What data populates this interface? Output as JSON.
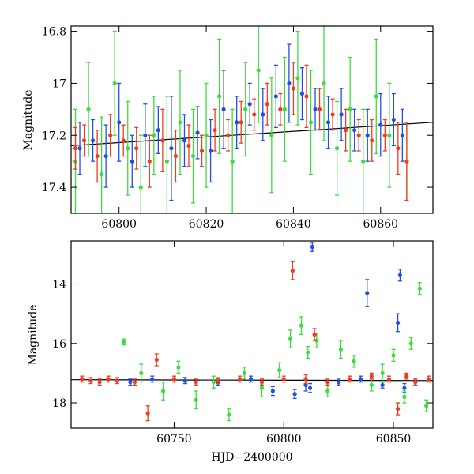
{
  "chart_data": [
    {
      "type": "scatter",
      "panel": "top",
      "xlabel": "",
      "ylabel": "Magnitude",
      "xlim": [
        60789,
        60872
      ],
      "ylim": [
        17.5,
        16.78
      ],
      "y_inverted": true,
      "x_ticks": [
        60800,
        60820,
        60840,
        60860
      ],
      "x_tick_labels": [
        "60800",
        "60820",
        "60840",
        "60860"
      ],
      "y_ticks": [
        16.8,
        17.0,
        17.2,
        17.4
      ],
      "y_tick_labels": [
        "16.8",
        "17",
        "17.2",
        "17.4"
      ],
      "grid": false,
      "legend": "none",
      "trend_line": {
        "x": [
          60789,
          60872
        ],
        "y": [
          17.24,
          17.15
        ]
      },
      "colors": {
        "blue": "#1f4fe6",
        "green": "#3ddc3d",
        "red": "#f03a22",
        "line": "#000000"
      },
      "series": [
        {
          "color": "blue",
          "x": [
            60791,
            60794,
            60797,
            60800,
            60803,
            60806,
            60809,
            60812,
            60815,
            60818,
            60821,
            60824,
            60827,
            60830,
            60833,
            60836,
            60839,
            60842,
            60845,
            60848,
            60851,
            60854,
            60857,
            60860,
            60863,
            60865
          ],
          "y": [
            17.25,
            17.22,
            17.28,
            17.15,
            17.3,
            17.2,
            17.18,
            17.25,
            17.22,
            17.19,
            17.26,
            17.1,
            17.15,
            17.08,
            17.12,
            17.05,
            17.0,
            17.04,
            17.1,
            17.15,
            17.12,
            17.18,
            17.2,
            17.16,
            17.14,
            17.2
          ],
          "err": [
            0.1,
            0.08,
            0.12,
            0.15,
            0.1,
            0.12,
            0.09,
            0.2,
            0.1,
            0.1,
            0.12,
            0.15,
            0.1,
            0.08,
            0.1,
            0.12,
            0.15,
            0.1,
            0.08,
            0.1,
            0.1,
            0.08,
            0.1,
            0.12,
            0.1,
            0.1
          ]
        },
        {
          "color": "green",
          "x": [
            60790,
            60793,
            60796,
            60799,
            60802,
            60805,
            60808,
            60811,
            60814,
            60817,
            60820,
            60823,
            60826,
            60829,
            60832,
            60835,
            60838,
            60841,
            60844,
            60847,
            60850,
            60853,
            60856,
            60859,
            60862,
            60866
          ],
          "y": [
            17.3,
            17.1,
            17.35,
            17.0,
            17.25,
            17.4,
            17.2,
            17.3,
            17.15,
            17.28,
            17.2,
            17.05,
            17.3,
            17.1,
            16.95,
            17.2,
            17.1,
            16.98,
            17.15,
            17.0,
            17.25,
            17.1,
            17.3,
            17.05,
            17.2,
            17.3
          ],
          "err": [
            0.2,
            0.18,
            0.22,
            0.2,
            0.18,
            0.2,
            0.15,
            0.25,
            0.2,
            0.18,
            0.2,
            0.22,
            0.2,
            0.18,
            0.2,
            0.22,
            0.2,
            0.18,
            0.2,
            0.22,
            0.18,
            0.2,
            0.2,
            0.22,
            0.2,
            0.15
          ]
        },
        {
          "color": "red",
          "x": [
            60790,
            60792,
            60795,
            60798,
            60801,
            60804,
            60807,
            60810,
            60813,
            60816,
            60819,
            60822,
            60825,
            60828,
            60831,
            60834,
            60837,
            60840,
            60843,
            60846,
            60849,
            60852,
            60855,
            60858,
            60861,
            60864,
            60866
          ],
          "y": [
            17.25,
            17.22,
            17.28,
            17.2,
            17.22,
            17.25,
            17.3,
            17.22,
            17.28,
            17.24,
            17.26,
            17.18,
            17.2,
            17.15,
            17.12,
            17.08,
            17.1,
            17.02,
            17.05,
            17.1,
            17.12,
            17.18,
            17.2,
            17.22,
            17.2,
            17.25,
            17.3
          ],
          "err": [
            0.08,
            0.06,
            0.1,
            0.08,
            0.06,
            0.08,
            0.1,
            0.12,
            0.1,
            0.08,
            0.06,
            0.08,
            0.06,
            0.08,
            0.06,
            0.08,
            0.06,
            0.1,
            0.12,
            0.08,
            0.06,
            0.08,
            0.06,
            0.08,
            0.06,
            0.1,
            0.15
          ]
        }
      ]
    },
    {
      "type": "scatter",
      "panel": "bottom",
      "xlabel": "HJD−2400000",
      "ylabel": "Magnitude",
      "xlim": [
        60703,
        60868
      ],
      "ylim": [
        18.85,
        12.55
      ],
      "y_inverted": true,
      "x_ticks": [
        60750,
        60800,
        60850
      ],
      "x_tick_labels": [
        "60750",
        "60800",
        "60850"
      ],
      "y_ticks": [
        14,
        16,
        18
      ],
      "y_tick_labels": [
        "14",
        "16",
        "18"
      ],
      "grid": false,
      "legend": "none",
      "trend_line": {
        "x": [
          60703,
          60868
        ],
        "y": [
          17.22,
          17.25
        ]
      },
      "colors": {
        "blue": "#1f4fe6",
        "green": "#3ddc3d",
        "red": "#f03a22",
        "line": "#000000"
      },
      "series": [
        {
          "color": "blue",
          "x": [
            60730,
            60740,
            60755,
            60770,
            60785,
            60795,
            60805,
            60810,
            60812,
            60813,
            60825,
            60835,
            60838,
            60845,
            60852,
            60853,
            60855,
            60860
          ],
          "y": [
            17.3,
            17.2,
            17.25,
            17.3,
            17.2,
            17.6,
            17.7,
            17.4,
            17.5,
            12.75,
            17.3,
            17.2,
            14.3,
            17.4,
            15.3,
            13.7,
            17.5,
            17.3
          ],
          "err": [
            0.1,
            0.1,
            0.1,
            0.1,
            0.1,
            0.15,
            0.15,
            0.2,
            0.15,
            0.15,
            0.1,
            0.1,
            0.45,
            0.1,
            0.3,
            0.2,
            0.15,
            0.1
          ]
        },
        {
          "color": "green",
          "x": [
            60727,
            60735,
            60745,
            60752,
            60760,
            60768,
            60775,
            60782,
            60790,
            60798,
            60803,
            60808,
            60811,
            60815,
            60820,
            60826,
            60832,
            60840,
            60845,
            60850,
            60855,
            60858,
            60862,
            60865
          ],
          "y": [
            15.95,
            17.0,
            17.6,
            16.8,
            17.9,
            17.3,
            18.4,
            17.0,
            17.5,
            16.9,
            15.85,
            15.4,
            16.3,
            15.9,
            17.6,
            16.2,
            16.6,
            17.4,
            17.0,
            16.4,
            17.8,
            16.0,
            14.15,
            18.1
          ],
          "err": [
            0.1,
            0.3,
            0.3,
            0.2,
            0.3,
            0.2,
            0.2,
            0.2,
            0.3,
            0.25,
            0.3,
            0.3,
            0.2,
            0.25,
            0.2,
            0.3,
            0.2,
            0.2,
            0.3,
            0.2,
            0.2,
            0.2,
            0.2,
            0.2
          ]
        },
        {
          "color": "red",
          "x": [
            60708,
            60712,
            60716,
            60720,
            60724,
            60732,
            60738,
            60742,
            60750,
            60760,
            60770,
            60780,
            60790,
            60800,
            60804,
            60810,
            60814,
            60820,
            60830,
            60840,
            60848,
            60852,
            60856,
            60860,
            60866
          ],
          "y": [
            17.2,
            17.25,
            17.3,
            17.2,
            17.25,
            17.3,
            18.35,
            16.55,
            17.2,
            17.3,
            17.25,
            17.2,
            17.3,
            17.2,
            13.55,
            17.2,
            15.7,
            17.3,
            17.2,
            17.1,
            17.2,
            18.2,
            17.1,
            17.3,
            17.2
          ],
          "err": [
            0.1,
            0.1,
            0.1,
            0.1,
            0.1,
            0.1,
            0.25,
            0.2,
            0.1,
            0.1,
            0.1,
            0.1,
            0.1,
            0.1,
            0.3,
            0.15,
            0.2,
            0.1,
            0.1,
            0.1,
            0.1,
            0.2,
            0.1,
            0.1,
            0.1
          ]
        }
      ]
    }
  ]
}
